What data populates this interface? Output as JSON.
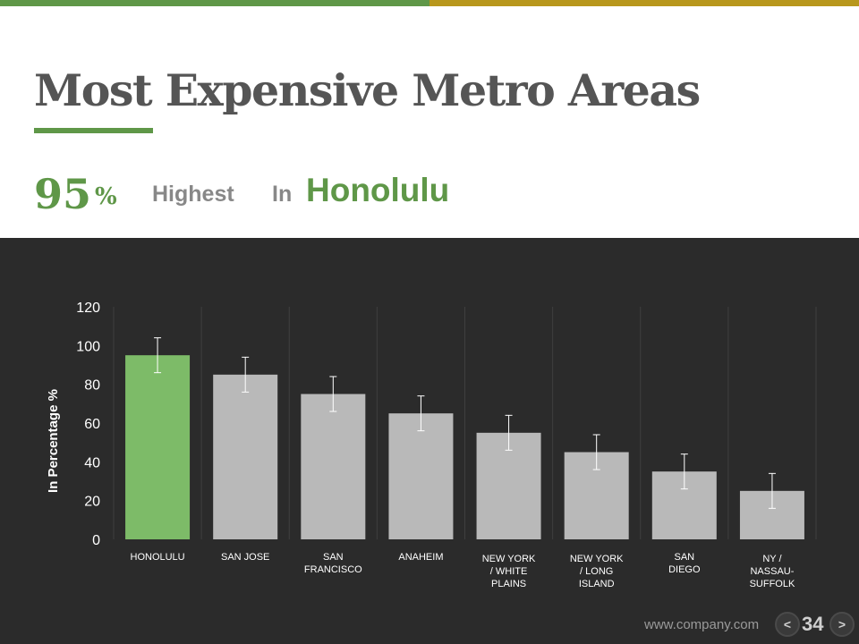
{
  "slide": {
    "title": "Most Expensive Metro Areas",
    "stat_value": "95",
    "stat_unit": "%",
    "stat_text": "Highest",
    "stat_text2": "In",
    "stat_highlight": "Honolulu"
  },
  "footer": {
    "url": "www.company.com",
    "page_number": "34",
    "prev_label": "<",
    "next_label": ">"
  },
  "colors": {
    "accent_green": "#5f9748",
    "accent_gold": "#b8971c",
    "highlight_bar": "#7dbb68",
    "bar": "#b9b9b9",
    "panel_bg": "#2b2b2b"
  },
  "chart_data": {
    "type": "bar",
    "ylabel": "In Percentage %",
    "xlabel": "",
    "ylim": [
      0,
      120
    ],
    "yticks": [
      0,
      20,
      40,
      60,
      80,
      100,
      120
    ],
    "grid": "vertical separators",
    "categories": [
      [
        "HONOLULU"
      ],
      [
        "SAN JOSE"
      ],
      [
        "SAN",
        "FRANCISCO"
      ],
      [
        "ANAHEIM"
      ],
      [
        "NEW YORK",
        "/ WHITE",
        "PLAINS"
      ],
      [
        "NEW YORK",
        "/ LONG",
        "ISLAND"
      ],
      [
        "SAN",
        "DIEGO"
      ],
      [
        "NY /",
        "NASSAU-",
        "SUFFOLK"
      ]
    ],
    "values": [
      95,
      85,
      75,
      65,
      55,
      45,
      35,
      25
    ],
    "error": 9,
    "highlight_index": 0
  }
}
